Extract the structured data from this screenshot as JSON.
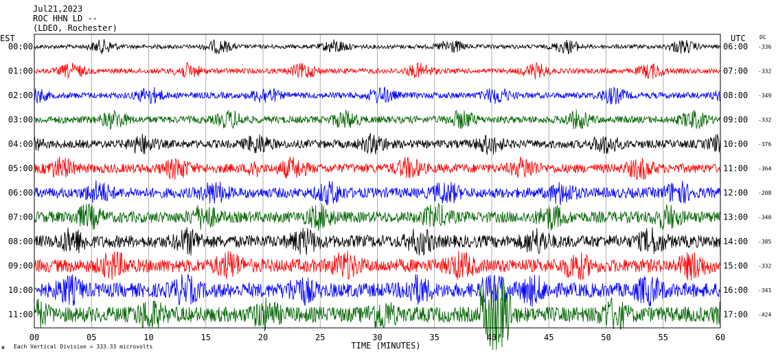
{
  "header": {
    "date": "Jul21,2023",
    "station": "ROC HHN LD --",
    "network": "(LDEO, Rochester)"
  },
  "chart_data": {
    "type": "line",
    "title": "ROC HHN LD --",
    "xlabel": "TIME (MINUTES)",
    "xlim": [
      0,
      60
    ],
    "x_ticks": [
      "00",
      "05",
      "10",
      "15",
      "20",
      "25",
      "30",
      "35",
      "40",
      "45",
      "50",
      "55",
      "60"
    ],
    "left_axis_label": "EST",
    "right_axis_label": "UTC",
    "dc_label": "DC",
    "grid": true,
    "rows": [
      {
        "est": "00:00",
        "utc": "06:00",
        "dc": "-336",
        "color": "#000000"
      },
      {
        "est": "01:00",
        "utc": "07:00",
        "dc": "-332",
        "color": "#ff0000"
      },
      {
        "est": "02:00",
        "utc": "08:00",
        "dc": "-349",
        "color": "#0000ff"
      },
      {
        "est": "03:00",
        "utc": "09:00",
        "dc": "-332",
        "color": "#006400"
      },
      {
        "est": "04:00",
        "utc": "10:00",
        "dc": "-376",
        "color": "#000000"
      },
      {
        "est": "05:00",
        "utc": "11:00",
        "dc": "-364",
        "color": "#ff0000"
      },
      {
        "est": "06:00",
        "utc": "12:00",
        "dc": "-208",
        "color": "#0000ff"
      },
      {
        "est": "07:00",
        "utc": "13:00",
        "dc": "-340",
        "color": "#006400"
      },
      {
        "est": "08:00",
        "utc": "14:00",
        "dc": "-385",
        "color": "#000000"
      },
      {
        "est": "09:00",
        "utc": "15:00",
        "dc": "-332",
        "color": "#ff0000"
      },
      {
        "est": "10:00",
        "utc": "16:00",
        "dc": "-341",
        "color": "#0000ff"
      },
      {
        "est": "11:00",
        "utc": "17:00",
        "dc": "-424",
        "color": "#006400"
      }
    ],
    "footer": "Each Vertical Division =  333.33 microvolts",
    "footer_mark": "ж"
  }
}
